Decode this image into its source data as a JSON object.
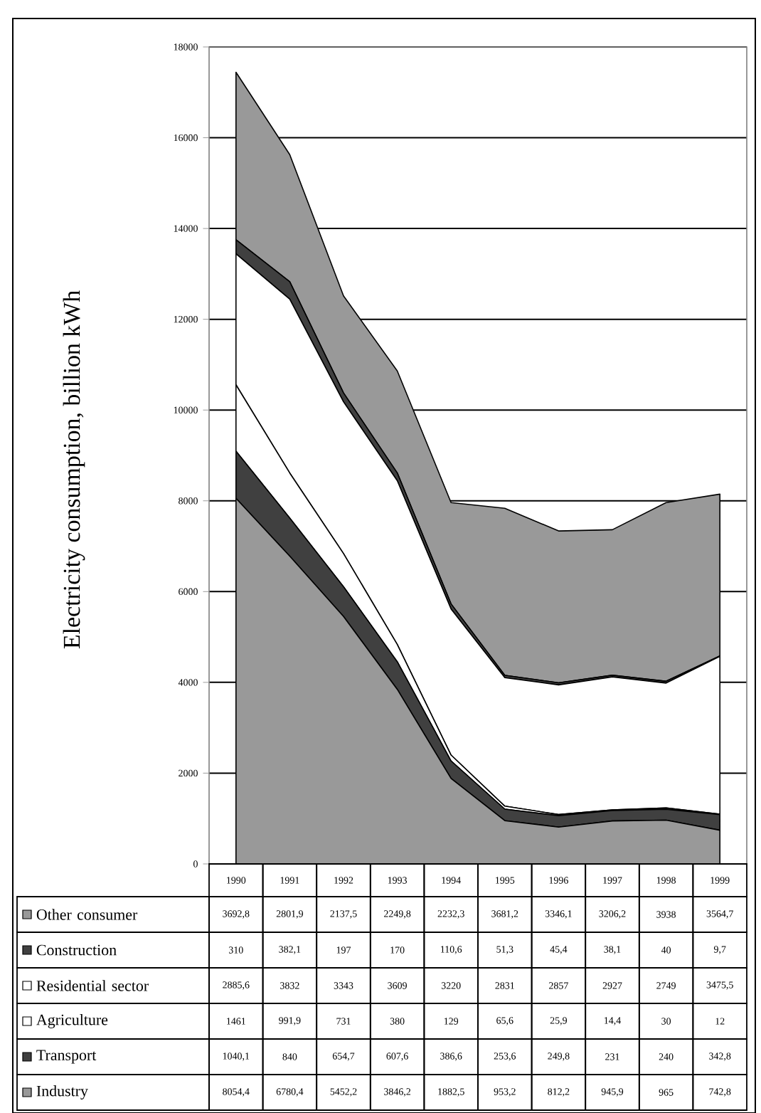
{
  "chart_data": {
    "type": "area",
    "stacked": true,
    "ylabel": "Electricity consumption, billion kWh",
    "categories": [
      "1990",
      "1991",
      "1992",
      "1993",
      "1994",
      "1995",
      "1996",
      "1997",
      "1998",
      "1999"
    ],
    "ylim": [
      0,
      18000
    ],
    "yticks": [
      0,
      2000,
      4000,
      6000,
      8000,
      10000,
      12000,
      14000,
      16000,
      18000
    ],
    "grid": "y",
    "legend": "bottom",
    "series": [
      {
        "name": "Industry",
        "color": "#999999",
        "values": [
          8054.4,
          6780.4,
          5452.2,
          3846.2,
          1882.5,
          953.2,
          812.2,
          945.9,
          965,
          742.8
        ],
        "value_labels": [
          "8054,4",
          "6780,4",
          "5452,2",
          "3846,2",
          "1882,5",
          "953,2",
          "812,2",
          "945,9",
          "965",
          "742,8"
        ]
      },
      {
        "name": "Transport",
        "color": "#404040",
        "values": [
          1040.1,
          840,
          654.7,
          607.6,
          386.6,
          253.6,
          249.8,
          231,
          240,
          342.8
        ],
        "value_labels": [
          "1040,1",
          "840",
          "654,7",
          "607,6",
          "386,6",
          "253,6",
          "249,8",
          "231",
          "240",
          "342,8"
        ]
      },
      {
        "name": "Agriculture",
        "color": "#ffffff",
        "values": [
          1461,
          991.9,
          731,
          380,
          129,
          65.6,
          25.9,
          14.4,
          30,
          12
        ],
        "value_labels": [
          "1461",
          "991,9",
          "731",
          "380",
          "129",
          "65,6",
          "25,9",
          "14,4",
          "30",
          "12"
        ]
      },
      {
        "name": "Residential sector",
        "color": "#ffffff",
        "values": [
          2885.6,
          3832,
          3343,
          3609,
          3220,
          2831,
          2857,
          2927,
          2749,
          3475.5
        ],
        "value_labels": [
          "2885,6",
          "3832",
          "3343",
          "3609",
          "3220",
          "2831",
          "2857",
          "2927",
          "2749",
          "3475,5"
        ]
      },
      {
        "name": "Construction",
        "color": "#404040",
        "values": [
          310,
          382.1,
          197,
          170,
          110.6,
          51.3,
          45.4,
          38.1,
          40,
          9.7
        ],
        "value_labels": [
          "310",
          "382,1",
          "197",
          "170",
          "110,6",
          "51,3",
          "45,4",
          "38,1",
          "40",
          "9,7"
        ]
      },
      {
        "name": "Other consumer",
        "color": "#999999",
        "values": [
          3692.8,
          2801.9,
          2137.5,
          2249.8,
          2232.3,
          3681.2,
          3346.1,
          3206.2,
          3938,
          3564.7
        ],
        "value_labels": [
          "3692,8",
          "2801,9",
          "2137,5",
          "2249,8",
          "2232,3",
          "3681,2",
          "3346,1",
          "3206,2",
          "3938",
          "3564,7"
        ]
      }
    ]
  }
}
